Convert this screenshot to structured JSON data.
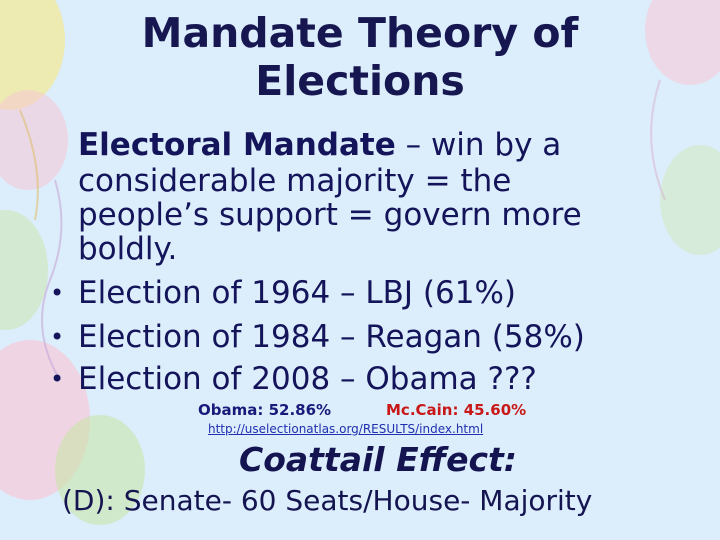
{
  "slide": {
    "title_line1": "Mandate Theory of",
    "title_line2": "Elections",
    "intro": {
      "bold": "Electoral Mandate",
      "rest_line1": " – win by a",
      "line2": "considerable majority = the",
      "line3": "people’s support = govern more",
      "line4": "boldly."
    },
    "bullet_symbol": "•",
    "bullets": [
      {
        "text": "Election of 1964 – LBJ (61%)",
        "color": "#14145a"
      },
      {
        "text": "Election of 1984 – Reagan (58%)",
        "color": "#14145a"
      },
      {
        "text": "Election of 2008 – Obama ???",
        "color": "#14145a"
      }
    ],
    "obama_result": "Obama: 52.86%",
    "mccain_result": "Mc.Cain: 45.60%",
    "source_link": "http://uselectionatlas.org/RESULTS/index.html",
    "coattail_heading": "Coattail Effect:",
    "coattail_detail": "(D): Senate- 60 Seats/House- Majority"
  },
  "colors": {
    "background": "#dcedfb",
    "title": "#161650",
    "text": "#14145a",
    "mccain": "#c81818",
    "link": "#2030b0"
  }
}
